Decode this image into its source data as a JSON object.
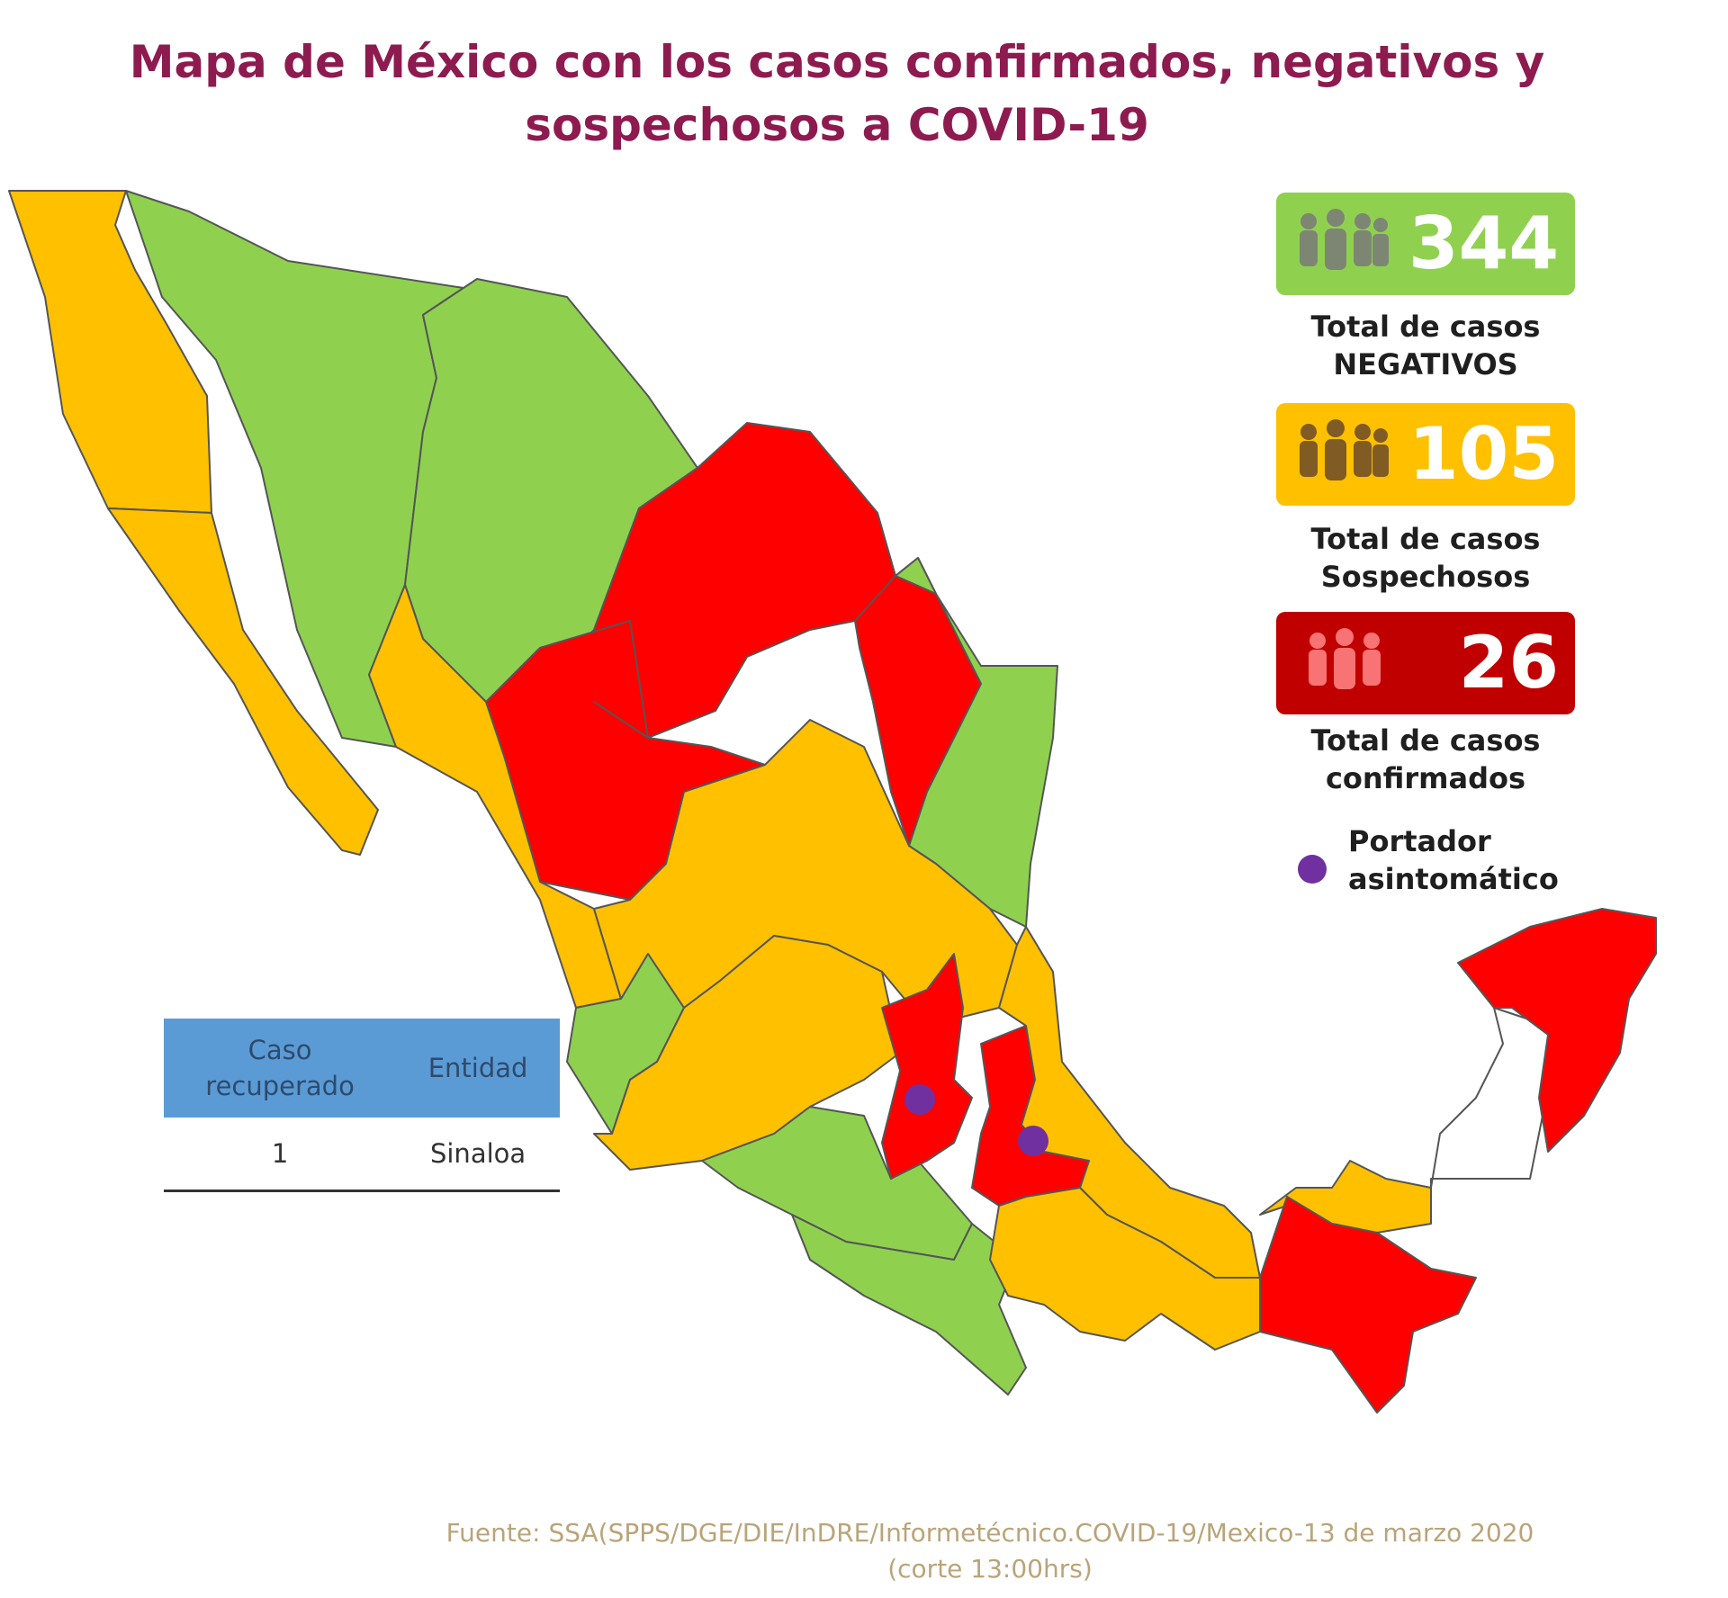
{
  "title": {
    "line1": "Mapa de México con los casos confirmados, negativos y",
    "line2": "sospechosos a COVID-19"
  },
  "colors": {
    "negativos": "#8fd14f",
    "sospechosos": "#ffc000",
    "confirmados": "#ff0000",
    "confirmados_box": "#c00000",
    "portador": "#7030a0",
    "title": "#8e1b4f",
    "table_header": "#5b9bd5"
  },
  "legend": {
    "negativos": {
      "value": "344",
      "label_line1": "Total de casos",
      "label_line2": "NEGATIVOS",
      "icon": "people-group-icon"
    },
    "sospechosos": {
      "value": "105",
      "label_line1": "Total de casos",
      "label_line2": "Sospechosos",
      "icon": "people-group-icon"
    },
    "confirmados": {
      "value": "26",
      "label_line1": "Total de casos",
      "label_line2": "confirmados",
      "icon": "people-group-icon"
    },
    "portador": {
      "label_line1": "Portador",
      "label_line2": "asintomático"
    }
  },
  "recovered_table": {
    "headers": [
      "Caso\nrecuperado",
      "Entidad"
    ],
    "rows": [
      {
        "caso": "1",
        "entidad": "Sinaloa"
      }
    ]
  },
  "map": {
    "regions": [
      {
        "name": "baja-california",
        "status": "sospechosos"
      },
      {
        "name": "baja-california-sur",
        "status": "sospechosos"
      },
      {
        "name": "sonora",
        "status": "negativos"
      },
      {
        "name": "chihuahua",
        "status": "negativos"
      },
      {
        "name": "coahuila",
        "status": "confirmados"
      },
      {
        "name": "nuevo-leon",
        "status": "confirmados"
      },
      {
        "name": "tamaulipas",
        "status": "negativos"
      },
      {
        "name": "sinaloa",
        "status": "sospechosos"
      },
      {
        "name": "durango",
        "status": "confirmados"
      },
      {
        "name": "nayarit",
        "status": "negativos"
      },
      {
        "name": "centro-norte",
        "status": "sospechosos"
      },
      {
        "name": "jalisco",
        "status": "sospechosos"
      },
      {
        "name": "michoacan",
        "status": "negativos"
      },
      {
        "name": "guerrero",
        "status": "negativos"
      },
      {
        "name": "queretaro-edomex",
        "status": "confirmados"
      },
      {
        "name": "cdmx-puebla",
        "status": "confirmados"
      },
      {
        "name": "veracruz",
        "status": "sospechosos"
      },
      {
        "name": "oaxaca",
        "status": "sospechosos"
      },
      {
        "name": "tabasco",
        "status": "sospechosos"
      },
      {
        "name": "chiapas",
        "status": "confirmados"
      },
      {
        "name": "campeche",
        "status": "sin-datos"
      },
      {
        "name": "yucatan-quintana-roo",
        "status": "confirmados"
      }
    ],
    "asymptomatic_markers": [
      {
        "name": "asymptomatic-marker-1"
      },
      {
        "name": "asymptomatic-marker-2"
      }
    ]
  },
  "source": {
    "line1": "Fuente: SSA(SPPS/DGE/DIE/InDRE/Informetécnico.COVID-19/Mexico-13 de marzo 2020",
    "line2": "(corte 13:00hrs)"
  }
}
